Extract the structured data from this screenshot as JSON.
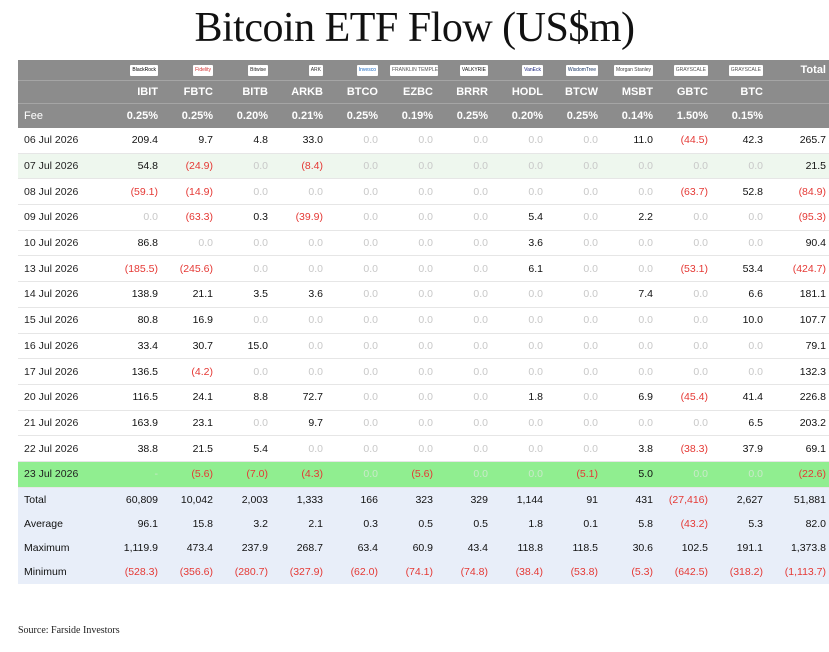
{
  "title": "Bitcoin ETF Flow (US$m)",
  "source": "Source: Farside Investors",
  "total_header": "Total",
  "fee_label": "Fee",
  "columns": [
    {
      "ticker": "IBIT",
      "fee": "0.25%",
      "logo": "BlackRock",
      "logo_bg": "#ffffff",
      "logo_fg": "#000000"
    },
    {
      "ticker": "FBTC",
      "fee": "0.25%",
      "logo": "Fidelity",
      "logo_bg": "#ffffff",
      "logo_fg": "#d32f2f"
    },
    {
      "ticker": "BITB",
      "fee": "0.20%",
      "logo": "Bitwise",
      "logo_bg": "#ffffff",
      "logo_fg": "#222222"
    },
    {
      "ticker": "ARKB",
      "fee": "0.21%",
      "logo": "ARK",
      "logo_bg": "#ffffff",
      "logo_fg": "#333333"
    },
    {
      "ticker": "BTCO",
      "fee": "0.25%",
      "logo": "Invesco",
      "logo_bg": "#ffffff",
      "logo_fg": "#1565c0"
    },
    {
      "ticker": "EZBC",
      "fee": "0.19%",
      "logo": "FRANKLIN TEMPLETON",
      "logo_bg": "#ffffff",
      "logo_fg": "#555555"
    },
    {
      "ticker": "BRRR",
      "fee": "0.25%",
      "logo": "VALKYRIE",
      "logo_bg": "#ffffff",
      "logo_fg": "#111111"
    },
    {
      "ticker": "HODL",
      "fee": "0.20%",
      "logo": "VanEck",
      "logo_bg": "#ffffff",
      "logo_fg": "#1a237e"
    },
    {
      "ticker": "BTCW",
      "fee": "0.25%",
      "logo": "WisdomTree",
      "logo_bg": "#ffffff",
      "logo_fg": "#0d2b5c"
    },
    {
      "ticker": "MSBT",
      "fee": "0.14%",
      "logo": "Morgan Stanley",
      "logo_bg": "#ffffff",
      "logo_fg": "#444444"
    },
    {
      "ticker": "GBTC",
      "fee": "1.50%",
      "logo": "GRAYSCALE",
      "logo_bg": "#ffffff",
      "logo_fg": "#555555"
    },
    {
      "ticker": "BTC",
      "fee": "0.15%",
      "logo": "GRAYSCALE",
      "logo_bg": "#ffffff",
      "logo_fg": "#555555"
    }
  ],
  "rows": [
    {
      "date": "06 Jul 2026",
      "values": [
        "209.4",
        "9.7",
        "4.8",
        "33.0",
        "0.0",
        "0.0",
        "0.0",
        "0.0",
        "0.0",
        "11.0",
        "(44.5)",
        "42.3"
      ],
      "total": "265.7",
      "style": ""
    },
    {
      "date": "07 Jul 2026",
      "values": [
        "54.8",
        "(24.9)",
        "0.0",
        "(8.4)",
        "0.0",
        "0.0",
        "0.0",
        "0.0",
        "0.0",
        "0.0",
        "0.0",
        "0.0"
      ],
      "total": "21.5",
      "style": "alt"
    },
    {
      "date": "08 Jul 2026",
      "values": [
        "(59.1)",
        "(14.9)",
        "0.0",
        "0.0",
        "0.0",
        "0.0",
        "0.0",
        "0.0",
        "0.0",
        "0.0",
        "(63.7)",
        "52.8"
      ],
      "total": "(84.9)",
      "style": ""
    },
    {
      "date": "09 Jul 2026",
      "values": [
        "0.0",
        "(63.3)",
        "0.3",
        "(39.9)",
        "0.0",
        "0.0",
        "0.0",
        "5.4",
        "0.0",
        "2.2",
        "0.0",
        "0.0"
      ],
      "total": "(95.3)",
      "style": ""
    },
    {
      "date": "10 Jul 2026",
      "values": [
        "86.8",
        "0.0",
        "0.0",
        "0.0",
        "0.0",
        "0.0",
        "0.0",
        "3.6",
        "0.0",
        "0.0",
        "0.0",
        "0.0"
      ],
      "total": "90.4",
      "style": ""
    },
    {
      "date": "13 Jul 2026",
      "values": [
        "(185.5)",
        "(245.6)",
        "0.0",
        "0.0",
        "0.0",
        "0.0",
        "0.0",
        "6.1",
        "0.0",
        "0.0",
        "(53.1)",
        "53.4"
      ],
      "total": "(424.7)",
      "style": ""
    },
    {
      "date": "14 Jul 2026",
      "values": [
        "138.9",
        "21.1",
        "3.5",
        "3.6",
        "0.0",
        "0.0",
        "0.0",
        "0.0",
        "0.0",
        "7.4",
        "0.0",
        "6.6"
      ],
      "total": "181.1",
      "style": ""
    },
    {
      "date": "15 Jul 2026",
      "values": [
        "80.8",
        "16.9",
        "0.0",
        "0.0",
        "0.0",
        "0.0",
        "0.0",
        "0.0",
        "0.0",
        "0.0",
        "0.0",
        "10.0"
      ],
      "total": "107.7",
      "style": ""
    },
    {
      "date": "16 Jul 2026",
      "values": [
        "33.4",
        "30.7",
        "15.0",
        "0.0",
        "0.0",
        "0.0",
        "0.0",
        "0.0",
        "0.0",
        "0.0",
        "0.0",
        "0.0"
      ],
      "total": "79.1",
      "style": ""
    },
    {
      "date": "17 Jul 2026",
      "values": [
        "136.5",
        "(4.2)",
        "0.0",
        "0.0",
        "0.0",
        "0.0",
        "0.0",
        "0.0",
        "0.0",
        "0.0",
        "0.0",
        "0.0"
      ],
      "total": "132.3",
      "style": ""
    },
    {
      "date": "20 Jul 2026",
      "values": [
        "116.5",
        "24.1",
        "8.8",
        "72.7",
        "0.0",
        "0.0",
        "0.0",
        "1.8",
        "0.0",
        "6.9",
        "(45.4)",
        "41.4"
      ],
      "total": "226.8",
      "style": ""
    },
    {
      "date": "21 Jul 2026",
      "values": [
        "163.9",
        "23.1",
        "0.0",
        "9.7",
        "0.0",
        "0.0",
        "0.0",
        "0.0",
        "0.0",
        "0.0",
        "0.0",
        "6.5"
      ],
      "total": "203.2",
      "style": ""
    },
    {
      "date": "22 Jul 2026",
      "values": [
        "38.8",
        "21.5",
        "5.4",
        "0.0",
        "0.0",
        "0.0",
        "0.0",
        "0.0",
        "0.0",
        "3.8",
        "(38.3)",
        "37.9"
      ],
      "total": "69.1",
      "style": ""
    },
    {
      "date": "23 Jul 2026",
      "values": [
        "-",
        "(5.6)",
        "(7.0)",
        "(4.3)",
        "0.0",
        "(5.6)",
        "0.0",
        "0.0",
        "(5.1)",
        "5.0",
        "0.0",
        "0.0"
      ],
      "total": "(22.6)",
      "style": "latest"
    }
  ],
  "summary": [
    {
      "label": "Total",
      "values": [
        "60,809",
        "10,042",
        "2,003",
        "1,333",
        "166",
        "323",
        "329",
        "1,144",
        "91",
        "431",
        "(27,416)",
        "2,627"
      ],
      "total": "51,881"
    },
    {
      "label": "Average",
      "values": [
        "96.1",
        "15.8",
        "3.2",
        "2.1",
        "0.3",
        "0.5",
        "0.5",
        "1.8",
        "0.1",
        "5.8",
        "(43.2)",
        "5.3"
      ],
      "total": "82.0"
    },
    {
      "label": "Maximum",
      "values": [
        "1,119.9",
        "473.4",
        "237.9",
        "268.7",
        "63.4",
        "60.9",
        "43.4",
        "118.8",
        "118.5",
        "30.6",
        "102.5",
        "191.1"
      ],
      "total": "1,373.8"
    },
    {
      "label": "Minimum",
      "values": [
        "(528.3)",
        "(356.6)",
        "(280.7)",
        "(327.9)",
        "(62.0)",
        "(74.1)",
        "(74.8)",
        "(38.4)",
        "(53.8)",
        "(5.3)",
        "(642.5)",
        "(318.2)"
      ],
      "total": "(1,113.7)"
    }
  ],
  "colors": {
    "header_bg": "#8c8c8c",
    "alt_row_bg": "#eef7ee",
    "latest_row_bg": "#90ee90",
    "summary_bg": "#e8eef9",
    "negative": "#e53935",
    "zero": "#c8c8c8"
  }
}
